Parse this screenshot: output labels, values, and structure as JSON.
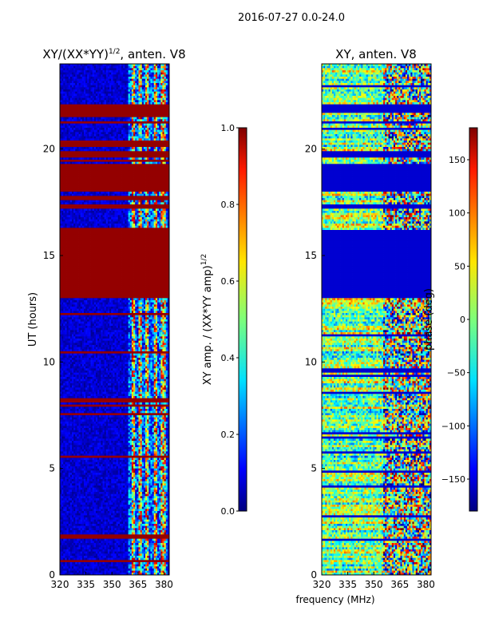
{
  "suptitle": "2016-07-27 0.0-24.0",
  "xlabel": "frequency (MHz)",
  "chart_data": [
    {
      "type": "heatmap",
      "title_text": "XY/(XX*YY)",
      "title_exp": "1/2",
      "title_suffix": ", anten. V8",
      "xlabel": "",
      "ylabel": "UT (hours)",
      "xlim": [
        320,
        383
      ],
      "ylim": [
        0,
        24
      ],
      "xticks": [
        320,
        335,
        350,
        365,
        380
      ],
      "yticks": [
        0,
        5,
        10,
        15,
        20
      ],
      "colorbar": {
        "label_text": "XY amp. / (XX*YY amp)",
        "label_exp": "1/2",
        "range": [
          0.0,
          1.0
        ],
        "ticks": [
          "0.0",
          "0.2",
          "0.4",
          "0.6",
          "0.8",
          "1.0"
        ],
        "colormap": "jet"
      },
      "saturated_bands_hours": [
        [
          13.0,
          16.2
        ],
        [
          17.2,
          17.35
        ],
        [
          17.6,
          17.75
        ],
        [
          18.0,
          19.3
        ],
        [
          19.6,
          19.85
        ],
        [
          20.1,
          20.4
        ],
        [
          21.2,
          21.25
        ],
        [
          21.7,
          22.1
        ]
      ]
    },
    {
      "type": "heatmap",
      "title_text": "XY, anten. V8",
      "xlabel": "frequency (MHz)",
      "ylabel": "",
      "xlim": [
        320,
        383
      ],
      "ylim": [
        0,
        24
      ],
      "xticks": [
        320,
        335,
        350,
        365,
        380
      ],
      "yticks": [
        0,
        5,
        10,
        15,
        20
      ],
      "colorbar": {
        "label_text": "phase (deg)",
        "range": [
          -180,
          180
        ],
        "ticks": [
          "-150",
          "-100",
          "-50",
          "0",
          "50",
          "100",
          "150"
        ],
        "colormap": "jet"
      },
      "blank_bands_hours": [
        [
          13.0,
          16.2
        ],
        [
          17.2,
          17.35
        ],
        [
          18.0,
          19.3
        ],
        [
          19.6,
          19.85
        ],
        [
          21.7,
          22.1
        ]
      ]
    }
  ]
}
